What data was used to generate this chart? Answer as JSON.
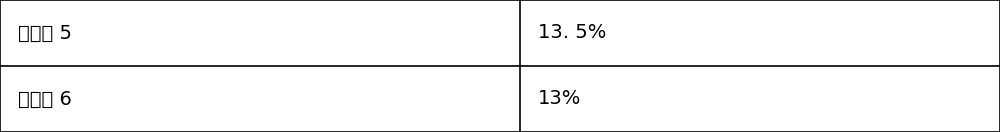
{
  "rows": [
    {
      "col1": "实施例 5",
      "col2": "13. 5%"
    },
    {
      "col1": "实施例 6",
      "col2": "13%"
    }
  ],
  "col_split": 0.52,
  "bg_color": "#ffffff",
  "border_color": "#000000",
  "text_color": "#000000",
  "font_size": 14,
  "fig_width": 10.0,
  "fig_height": 1.32,
  "dpi": 100
}
